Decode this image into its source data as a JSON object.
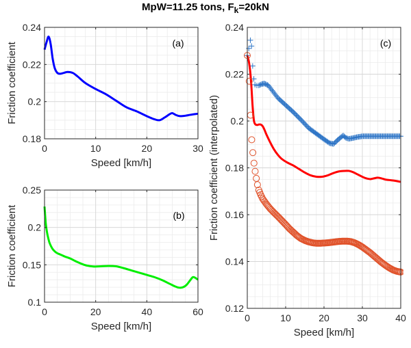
{
  "figure": {
    "title_main": "MpW=11.25 tons, F",
    "title_sub": "k",
    "title_tail": "=20kN"
  },
  "chart_data": [
    {
      "id": "a",
      "type": "line",
      "panel_label": "(a)",
      "title": "",
      "xlabel": "Speed [km/h]",
      "ylabel": "Friction coefficient",
      "xlim": [
        0,
        30
      ],
      "ylim": [
        0.18,
        0.24
      ],
      "xticks": [
        0,
        10,
        20,
        30
      ],
      "xtick_labels": [
        "0",
        "10",
        "20",
        "30"
      ],
      "yticks": [
        0.18,
        0.2,
        0.22,
        0.24
      ],
      "ytick_labels": [
        "0.18",
        "0.2",
        "0.22",
        "0.24"
      ],
      "grid": "major+minor",
      "series": [
        {
          "name": "friction",
          "color": "#0000ff",
          "style": "line",
          "x": [
            0,
            0.4,
            0.8,
            1.2,
            1.6,
            2,
            2.5,
            3,
            3.8,
            4.5,
            5.5,
            6.5,
            8,
            10,
            12,
            14,
            16,
            18,
            20,
            21.5,
            22.5,
            23.5,
            24.5,
            25,
            25.7,
            26.5,
            27.5,
            28.5,
            30
          ],
          "y": [
            0.228,
            0.232,
            0.235,
            0.231,
            0.223,
            0.218,
            0.2155,
            0.215,
            0.2155,
            0.216,
            0.2155,
            0.2135,
            0.21,
            0.2068,
            0.204,
            0.2005,
            0.197,
            0.1948,
            0.1922,
            0.1905,
            0.19,
            0.1915,
            0.1933,
            0.1938,
            0.1928,
            0.1922,
            0.1924,
            0.1929,
            0.1935
          ]
        }
      ]
    },
    {
      "id": "b",
      "type": "line",
      "panel_label": "(b)",
      "title": "",
      "xlabel": "Speed [km/h]",
      "ylabel": "Friction coefficient",
      "xlim": [
        0,
        60
      ],
      "ylim": [
        0.1,
        0.25
      ],
      "xticks": [
        0,
        20,
        40,
        60
      ],
      "xtick_labels": [
        "0",
        "20",
        "40",
        "60"
      ],
      "yticks": [
        0.1,
        0.15,
        0.2,
        0.25
      ],
      "ytick_labels": [
        "0.1",
        "0.15",
        "0.2",
        "0.25"
      ],
      "grid": "major+minor",
      "series": [
        {
          "name": "friction",
          "color": "#00ee00",
          "style": "line",
          "x": [
            0,
            0.5,
            1,
            1.5,
            2,
            3,
            4,
            5,
            6,
            8,
            10,
            13,
            16,
            19,
            22,
            25,
            28,
            31,
            34,
            37,
            40,
            43,
            46,
            49,
            51,
            52.5,
            54,
            55.5,
            57,
            58,
            59,
            60
          ],
          "y": [
            0.228,
            0.205,
            0.193,
            0.185,
            0.179,
            0.172,
            0.168,
            0.1655,
            0.164,
            0.161,
            0.1585,
            0.1535,
            0.1495,
            0.1478,
            0.148,
            0.1485,
            0.148,
            0.1455,
            0.1425,
            0.1395,
            0.1365,
            0.1335,
            0.1295,
            0.1245,
            0.1212,
            0.1195,
            0.1198,
            0.123,
            0.1295,
            0.1335,
            0.1325,
            0.13
          ]
        }
      ]
    },
    {
      "id": "c",
      "type": "line",
      "panel_label": "(c)",
      "title": "",
      "xlabel": "Speed [km/h]",
      "ylabel": "Friction coefficient (interpolated)",
      "xlim": [
        0,
        40
      ],
      "ylim": [
        0.12,
        0.24
      ],
      "xticks": [
        0,
        10,
        20,
        30,
        40
      ],
      "xtick_labels": [
        "0",
        "10",
        "20",
        "30",
        "40"
      ],
      "yticks": [
        0.12,
        0.14,
        0.16,
        0.18,
        0.2,
        0.22,
        0.24
      ],
      "ytick_labels": [
        "0.12",
        "0.14",
        "0.16",
        "0.18",
        "0.2",
        "0.22",
        "0.24"
      ],
      "grid": "major+minor",
      "series": [
        {
          "name": "interpolated-plus",
          "color": "#2e75c6",
          "style": "plus-markers",
          "x": [
            0,
            0.4,
            0.8,
            1.1,
            1.4,
            1.7,
            2,
            2.5,
            3,
            3.8,
            4.5,
            5.5,
            6.5,
            8,
            10,
            12,
            14,
            16,
            18,
            20,
            21.5,
            22.5,
            23.5,
            24.5,
            25,
            25.7,
            26.5,
            27.5,
            28.5,
            30,
            32,
            34,
            36,
            38,
            40
          ],
          "y": [
            0.228,
            0.231,
            0.2345,
            0.232,
            0.2235,
            0.218,
            0.2155,
            0.2152,
            0.2152,
            0.2158,
            0.216,
            0.2152,
            0.213,
            0.2098,
            0.2068,
            0.2038,
            0.2005,
            0.197,
            0.1946,
            0.1922,
            0.1905,
            0.1902,
            0.1918,
            0.1932,
            0.1938,
            0.1928,
            0.1924,
            0.1927,
            0.1931,
            0.1935,
            0.1935,
            0.1935,
            0.1935,
            0.1935,
            0.1935
          ]
        },
        {
          "name": "interpolated-line",
          "color": "#ff0000",
          "style": "line",
          "x": [
            0,
            0.4,
            0.8,
            1.1,
            1.4,
            1.7,
            2,
            2.5,
            3,
            3.5,
            4,
            4.5,
            5,
            6,
            7,
            8,
            9,
            10.5,
            12,
            13.5,
            15,
            16.5,
            18,
            19.5,
            21,
            22.5,
            24,
            25.5,
            26.5,
            27.5,
            29,
            30.5,
            32,
            33,
            34,
            35,
            36,
            37,
            38.5,
            40
          ],
          "y": [
            0.228,
            0.2255,
            0.2205,
            0.214,
            0.206,
            0.2005,
            0.1988,
            0.1983,
            0.1985,
            0.1985,
            0.1978,
            0.1962,
            0.1942,
            0.1908,
            0.1878,
            0.1855,
            0.1838,
            0.1822,
            0.181,
            0.1795,
            0.178,
            0.1768,
            0.1762,
            0.1762,
            0.1768,
            0.1778,
            0.1785,
            0.1787,
            0.1787,
            0.1782,
            0.177,
            0.1758,
            0.1752,
            0.1755,
            0.1758,
            0.1755,
            0.175,
            0.1748,
            0.1745,
            0.174
          ]
        },
        {
          "name": "interpolated-circles",
          "color": "#e0522a",
          "style": "circle-markers",
          "x": [
            0,
            0.5,
            0.85,
            1.15,
            1.45,
            1.75,
            2.05,
            2.35,
            2.65,
            3,
            3.5,
            4,
            5,
            6,
            7,
            8,
            9,
            10,
            11,
            12,
            13,
            14,
            15,
            16,
            17,
            18,
            19,
            20,
            21,
            22,
            23,
            24,
            25,
            26,
            27,
            28,
            29,
            30,
            31,
            32,
            33,
            34,
            35,
            36,
            37,
            38,
            39,
            40
          ],
          "y": [
            0.228,
            0.217,
            0.2025,
            0.192,
            0.1865,
            0.182,
            0.1785,
            0.1755,
            0.1728,
            0.1705,
            0.1685,
            0.1668,
            0.1645,
            0.1625,
            0.1608,
            0.1592,
            0.1575,
            0.1558,
            0.154,
            0.1525,
            0.151,
            0.1498,
            0.149,
            0.1484,
            0.148,
            0.1478,
            0.1478,
            0.1479,
            0.148,
            0.1482,
            0.1484,
            0.1486,
            0.1487,
            0.1487,
            0.1485,
            0.148,
            0.1472,
            0.1462,
            0.145,
            0.1438,
            0.1424,
            0.141,
            0.1396,
            0.1384,
            0.1373,
            0.1364,
            0.1358,
            0.1355
          ]
        }
      ]
    }
  ]
}
